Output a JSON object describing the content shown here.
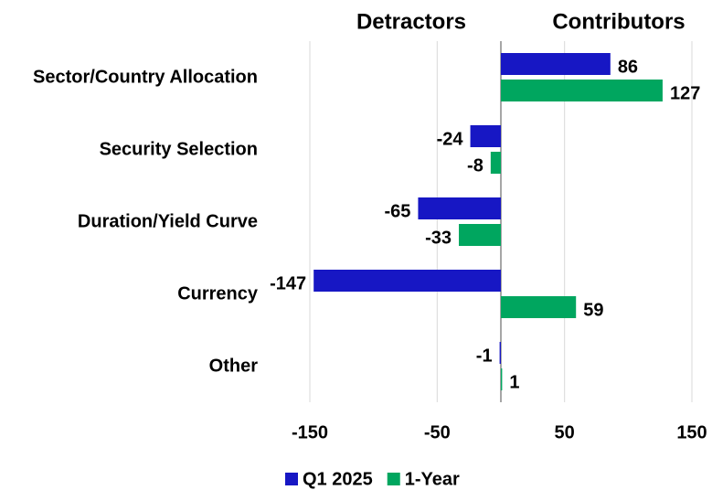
{
  "chart_data": {
    "type": "hbar",
    "annotations": [
      "Detractors",
      "Contributors"
    ],
    "categories": [
      "Sector/Country Allocation",
      "Security Selection",
      "Duration/Yield Curve",
      "Currency",
      "Other"
    ],
    "series": [
      {
        "name": "Q1 2025",
        "color": "#1717c4",
        "values": [
          86,
          -24,
          -65,
          -147,
          -1
        ]
      },
      {
        "name": "1-Year",
        "color": "#00a65f",
        "values": [
          127,
          -8,
          -33,
          59,
          1
        ]
      }
    ],
    "xlim": [
      -150,
      150
    ],
    "xticks": [
      -150,
      -50,
      50,
      150
    ],
    "grid": true,
    "legend": "bottom"
  }
}
